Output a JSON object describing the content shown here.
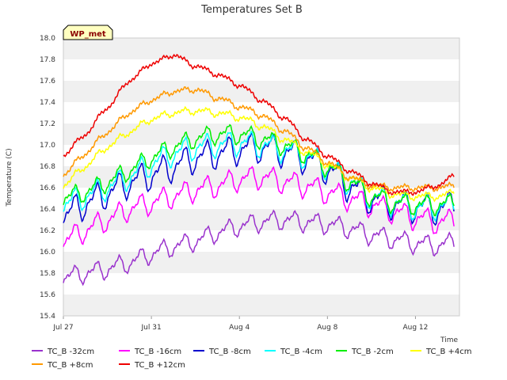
{
  "chart_data": {
    "type": "line",
    "title": "Temperatures Set B",
    "xlabel": "Time",
    "ylabel": "Temperature (C)",
    "ylim": [
      15.4,
      18.0
    ],
    "xlim": [
      "2019-07-27",
      "2019-08-14"
    ],
    "x_ticks": [
      {
        "date": "2019-07-27",
        "label": "Jul 27"
      },
      {
        "date": "2019-07-31",
        "label": "Jul 31"
      },
      {
        "date": "2019-08-04",
        "label": "Aug 4"
      },
      {
        "date": "2019-08-08",
        "label": "Aug 8"
      },
      {
        "date": "2019-08-12",
        "label": "Aug 12"
      }
    ],
    "y_ticks": [
      "15.4",
      "15.6",
      "15.8",
      "16.0",
      "16.2",
      "16.4",
      "16.6",
      "16.8",
      "17.0",
      "17.2",
      "17.4",
      "17.6",
      "17.8",
      "18.0"
    ],
    "grid": "horizontal alternating bands",
    "badge": "WP_met",
    "legend_position": "bottom",
    "x": [
      "2019-07-27",
      "2019-07-28",
      "2019-07-29",
      "2019-07-30",
      "2019-07-31",
      "2019-08-01",
      "2019-08-02",
      "2019-08-03",
      "2019-08-04",
      "2019-08-05",
      "2019-08-06",
      "2019-08-07",
      "2019-08-08",
      "2019-08-09",
      "2019-08-10",
      "2019-08-11",
      "2019-08-12",
      "2019-08-13",
      "2019-08-14"
    ],
    "series": [
      {
        "name": "TC_B -32cm",
        "color": "#9a32cd",
        "values": [
          15.76,
          15.8,
          15.84,
          15.9,
          15.98,
          16.05,
          16.1,
          16.18,
          16.24,
          16.28,
          16.3,
          16.28,
          16.26,
          16.22,
          16.16,
          16.12,
          16.08,
          16.06,
          16.1
        ]
      },
      {
        "name": "TC_B -16cm",
        "color": "#ff00ff",
        "values": [
          16.1,
          16.2,
          16.3,
          16.4,
          16.46,
          16.52,
          16.58,
          16.62,
          16.68,
          16.7,
          16.66,
          16.62,
          16.56,
          16.5,
          16.44,
          16.38,
          16.32,
          16.28,
          16.3
        ]
      },
      {
        "name": "TC_B -8cm",
        "color": "#0000cd",
        "values": [
          16.34,
          16.45,
          16.55,
          16.65,
          16.72,
          16.8,
          16.88,
          16.92,
          16.96,
          16.98,
          16.94,
          16.88,
          16.78,
          16.62,
          16.5,
          16.45,
          16.42,
          16.4,
          16.45
        ]
      },
      {
        "name": "TC_B -4cm",
        "color": "#00ffff",
        "values": [
          16.44,
          16.52,
          16.6,
          16.7,
          16.82,
          16.92,
          16.98,
          17.0,
          17.02,
          17.0,
          16.96,
          16.9,
          16.8,
          16.66,
          16.52,
          16.46,
          16.42,
          16.42,
          16.44
        ]
      },
      {
        "name": "TC_B -2cm",
        "color": "#00ee00",
        "values": [
          16.5,
          16.56,
          16.65,
          16.76,
          16.88,
          16.98,
          17.06,
          17.1,
          17.1,
          17.06,
          17.0,
          16.92,
          16.8,
          16.66,
          16.52,
          16.46,
          16.44,
          16.44,
          16.46
        ]
      },
      {
        "name": "TC_B +4cm",
        "color": "#ffff00",
        "values": [
          16.62,
          16.8,
          16.98,
          17.12,
          17.24,
          17.3,
          17.32,
          17.3,
          17.26,
          17.18,
          17.06,
          16.94,
          16.82,
          16.7,
          16.6,
          16.54,
          16.52,
          16.52,
          16.56
        ]
      },
      {
        "name": "TC_B +8cm",
        "color": "#ff9900",
        "values": [
          16.72,
          16.92,
          17.12,
          17.3,
          17.42,
          17.5,
          17.52,
          17.44,
          17.36,
          17.28,
          17.14,
          16.98,
          16.84,
          16.7,
          16.62,
          16.6,
          16.6,
          16.6,
          16.62
        ]
      },
      {
        "name": "TC_B +12cm",
        "color": "#ee0000",
        "values": [
          16.9,
          17.1,
          17.35,
          17.6,
          17.76,
          17.84,
          17.74,
          17.66,
          17.56,
          17.42,
          17.26,
          17.06,
          16.9,
          16.76,
          16.64,
          16.56,
          16.56,
          16.62,
          16.74
        ]
      }
    ]
  },
  "colors": {
    "band": "#f0f0f0",
    "axis": "#bbbbbb",
    "badge_fill": "#ffffc0",
    "badge_text": "#8b0000"
  }
}
